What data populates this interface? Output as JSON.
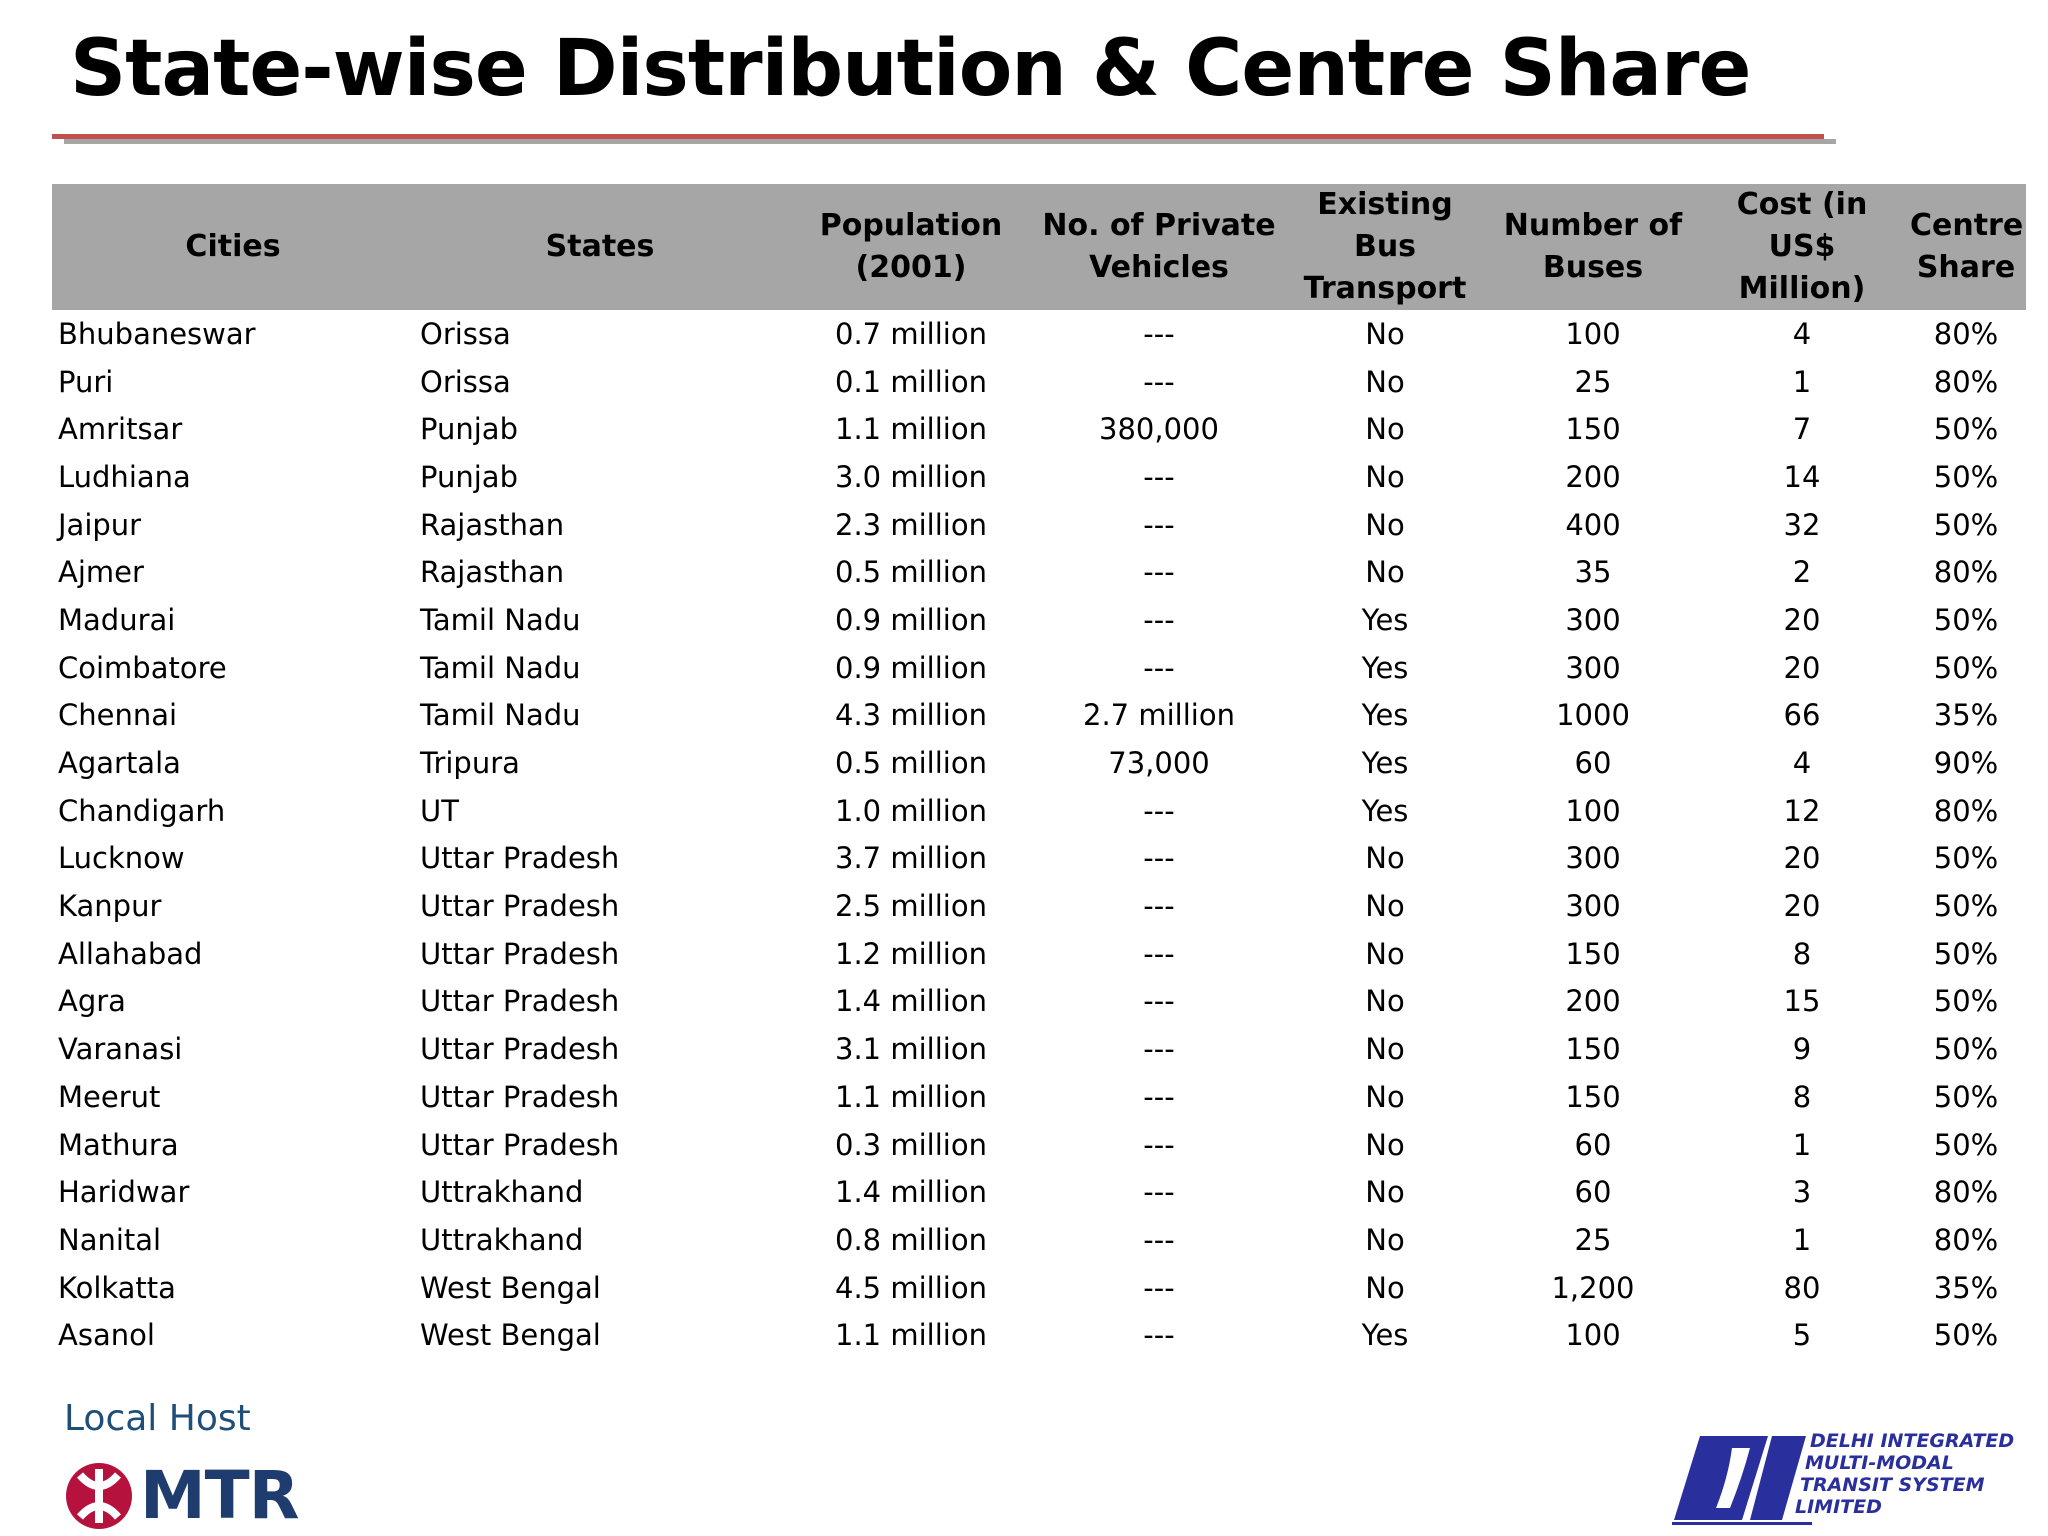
{
  "title": "State-wise Distribution & Centre Share",
  "table": {
    "headers": [
      "Cities",
      "States",
      "Population (2001)",
      "No. of Private Vehicles",
      "Existing Bus Transport",
      "Number of Buses",
      "Cost (in US$ Million)",
      "Centre Share"
    ],
    "rows": [
      [
        "Bhubaneswar",
        "Orissa",
        "0.7 million",
        "---",
        "No",
        "100",
        "4",
        "80%"
      ],
      [
        "Puri",
        "Orissa",
        "0.1 million",
        "---",
        "No",
        "25",
        "1",
        "80%"
      ],
      [
        "Amritsar",
        "Punjab",
        "1.1 million",
        "380,000",
        "No",
        "150",
        "7",
        "50%"
      ],
      [
        "Ludhiana",
        "Punjab",
        "3.0 million",
        "---",
        "No",
        "200",
        "14",
        "50%"
      ],
      [
        "Jaipur",
        "Rajasthan",
        "2.3 million",
        "---",
        "No",
        "400",
        "32",
        "50%"
      ],
      [
        "Ajmer",
        "Rajasthan",
        "0.5 million",
        "---",
        "No",
        "35",
        "2",
        "80%"
      ],
      [
        "Madurai",
        "Tamil Nadu",
        "0.9 million",
        "---",
        "Yes",
        "300",
        "20",
        "50%"
      ],
      [
        "Coimbatore",
        "Tamil Nadu",
        "0.9 million",
        "---",
        "Yes",
        "300",
        "20",
        "50%"
      ],
      [
        "Chennai",
        "Tamil Nadu",
        "4.3 million",
        "2.7 million",
        "Yes",
        "1000",
        "66",
        "35%"
      ],
      [
        "Agartala",
        "Tripura",
        "0.5 million",
        "73,000",
        "Yes",
        "60",
        "4",
        "90%"
      ],
      [
        "Chandigarh",
        "UT",
        "1.0 million",
        "---",
        "Yes",
        "100",
        "12",
        "80%"
      ],
      [
        "Lucknow",
        "Uttar Pradesh",
        "3.7 million",
        "---",
        "No",
        "300",
        "20",
        "50%"
      ],
      [
        "Kanpur",
        "Uttar Pradesh",
        "2.5 million",
        "---",
        "No",
        "300",
        "20",
        "50%"
      ],
      [
        "Allahabad",
        "Uttar Pradesh",
        "1.2 million",
        "---",
        "No",
        "150",
        "8",
        "50%"
      ],
      [
        "Agra",
        "Uttar Pradesh",
        "1.4 million",
        "---",
        "No",
        "200",
        "15",
        "50%"
      ],
      [
        "Varanasi",
        "Uttar Pradesh",
        "3.1 million",
        "---",
        "No",
        "150",
        "9",
        "50%"
      ],
      [
        "Meerut",
        "Uttar Pradesh",
        "1.1 million",
        "---",
        "No",
        "150",
        "8",
        "50%"
      ],
      [
        "Mathura",
        "Uttar Pradesh",
        "0.3 million",
        "---",
        "No",
        "60",
        "1",
        "50%"
      ],
      [
        "Haridwar",
        "Uttrakhand",
        "1.4 million",
        "---",
        "No",
        "60",
        "3",
        "80%"
      ],
      [
        "Nanital",
        "Uttrakhand",
        "0.8 million",
        "---",
        "No",
        "25",
        "1",
        "80%"
      ],
      [
        "Kolkatta",
        "West Bengal",
        "4.5 million",
        "---",
        "No",
        "1,200",
        "80",
        "35%"
      ],
      [
        "Asanol",
        "West Bengal",
        "1.1 million",
        "---",
        "Yes",
        "100",
        "5",
        "50%"
      ]
    ]
  },
  "footer": {
    "local_host": "Local Host",
    "mtr_logo_text": "MTR",
    "dimts_lines": [
      "DELHI INTEGRATED",
      "MULTI-MODAL",
      "TRANSIT SYSTEM",
      "LIMITED"
    ]
  },
  "colors": {
    "header_fill": "#a6a6a6",
    "rule_red": "#c0504d",
    "rule_grey": "#a6a6a6",
    "mtr_red": "#b5123e",
    "mtr_blue": "#1f3c6e",
    "dimts_blue": "#2a2f9e"
  }
}
